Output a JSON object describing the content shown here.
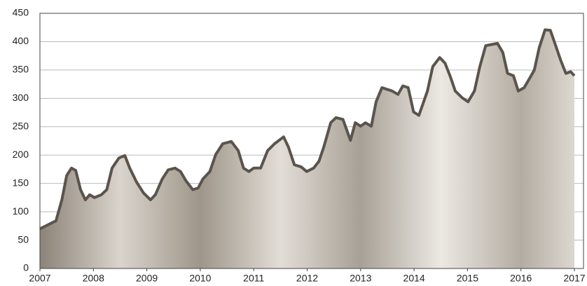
{
  "chart_data": {
    "type": "area",
    "x": [
      2007.0,
      2007.17,
      2007.3,
      2007.41,
      2007.5,
      2007.59,
      2007.67,
      2007.76,
      2007.85,
      2007.93,
      2008.02,
      2008.15,
      2008.25,
      2008.35,
      2008.48,
      2008.59,
      2008.68,
      2008.81,
      2008.94,
      2009.07,
      2009.16,
      2009.29,
      2009.4,
      2009.53,
      2009.63,
      2009.73,
      2009.86,
      2009.96,
      2010.05,
      2010.18,
      2010.29,
      2010.42,
      2010.58,
      2010.71,
      2010.81,
      2010.91,
      2011.0,
      2011.13,
      2011.26,
      2011.39,
      2011.56,
      2011.65,
      2011.76,
      2011.89,
      2011.99,
      2012.12,
      2012.22,
      2012.31,
      2012.44,
      2012.54,
      2012.67,
      2012.81,
      2012.9,
      2013.0,
      2013.09,
      2013.2,
      2013.29,
      2013.4,
      2013.59,
      2013.7,
      2013.79,
      2013.89,
      2013.99,
      2014.09,
      2014.25,
      2014.35,
      2014.48,
      2014.58,
      2014.68,
      2014.77,
      2014.9,
      2015.01,
      2015.13,
      2015.23,
      2015.34,
      2015.56,
      2015.66,
      2015.75,
      2015.86,
      2015.95,
      2016.06,
      2016.16,
      2016.25,
      2016.34,
      2016.45,
      2016.55,
      2016.65,
      2016.74,
      2016.84,
      2016.93,
      2017.0
    ],
    "values": [
      70,
      78,
      84,
      121,
      164,
      177,
      173,
      139,
      121,
      130,
      125,
      130,
      139,
      177,
      195,
      199,
      177,
      152,
      133,
      121,
      130,
      158,
      174,
      177,
      171,
      155,
      139,
      142,
      158,
      171,
      201,
      220,
      224,
      208,
      177,
      171,
      177,
      177,
      208,
      220,
      232,
      214,
      183,
      179,
      171,
      177,
      189,
      214,
      257,
      266,
      263,
      226,
      257,
      251,
      257,
      251,
      294,
      319,
      313,
      307,
      322,
      319,
      276,
      270,
      313,
      356,
      372,
      362,
      338,
      313,
      301,
      294,
      313,
      356,
      393,
      397,
      381,
      344,
      340,
      313,
      319,
      335,
      350,
      389,
      421,
      420,
      393,
      368,
      344,
      347,
      340
    ],
    "color": "#5b544c",
    "xlim": [
      2007,
      2017.17
    ],
    "xticks": [
      2007,
      2008,
      2009,
      2010,
      2011,
      2012,
      2013,
      2014,
      2015,
      2016,
      2017
    ],
    "ylim": [
      0,
      450
    ],
    "yticks": [
      0,
      50,
      100,
      150,
      200,
      250,
      300,
      350,
      400,
      450
    ],
    "grid": true
  }
}
